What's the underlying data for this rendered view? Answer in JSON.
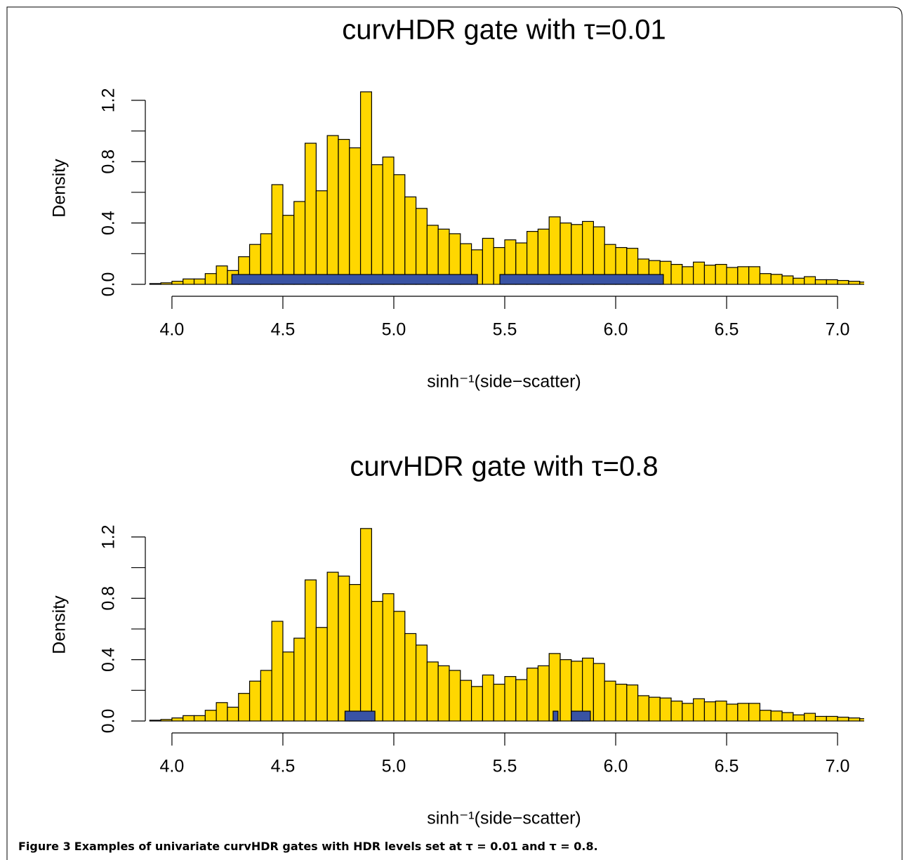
{
  "chart_data": [
    {
      "type": "histogram",
      "title": "curvHDR gate with τ=0.01",
      "x_label": "sinh⁻¹(side−scatter)",
      "y_label": "Density",
      "bins": [
        3.9,
        3.95,
        4.0,
        4.05,
        4.1,
        4.15,
        4.2,
        4.25,
        4.3,
        4.35,
        4.4,
        4.45,
        4.5,
        4.55,
        4.6,
        4.65,
        4.7,
        4.75,
        4.8,
        4.85,
        4.9,
        4.95,
        5.0,
        5.05,
        5.1,
        5.15,
        5.2,
        5.25,
        5.3,
        5.35,
        5.4,
        5.45,
        5.5,
        5.55,
        5.6,
        5.65,
        5.7,
        5.75,
        5.8,
        5.85,
        5.9,
        5.95,
        6.0,
        6.05,
        6.1,
        6.15,
        6.2,
        6.25,
        6.3,
        6.35,
        6.4,
        6.45,
        6.5,
        6.55,
        6.6,
        6.65,
        6.7,
        6.75,
        6.8,
        6.85,
        6.9,
        6.95,
        7.0,
        7.05,
        7.1,
        7.15
      ],
      "values": [
        0.005,
        0.01,
        0.02,
        0.035,
        0.035,
        0.07,
        0.12,
        0.09,
        0.18,
        0.26,
        0.33,
        0.65,
        0.45,
        0.54,
        0.92,
        0.61,
        0.97,
        0.945,
        0.89,
        1.255,
        0.78,
        0.83,
        0.715,
        0.57,
        0.495,
        0.385,
        0.36,
        0.33,
        0.265,
        0.225,
        0.3,
        0.24,
        0.29,
        0.27,
        0.345,
        0.36,
        0.44,
        0.4,
        0.39,
        0.41,
        0.375,
        0.26,
        0.24,
        0.235,
        0.165,
        0.155,
        0.15,
        0.13,
        0.115,
        0.145,
        0.125,
        0.13,
        0.11,
        0.115,
        0.115,
        0.07,
        0.065,
        0.055,
        0.04,
        0.05,
        0.03,
        0.03,
        0.025,
        0.02,
        0.015
      ],
      "color": "#ffd700",
      "gate_color": "#3953a4",
      "gates": [
        [
          4.27,
          5.377
        ],
        [
          5.478,
          6.215
        ]
      ],
      "xlim": [
        3.88,
        7.12
      ],
      "ylim": [
        0,
        1.3
      ],
      "xticks": [
        {
          "value": 4,
          "label": "4.0"
        },
        {
          "value": 4.5,
          "label": "4.5"
        },
        {
          "value": 5,
          "label": "5.0"
        },
        {
          "value": 5.5,
          "label": "5.5"
        },
        {
          "value": 6,
          "label": "6.0"
        },
        {
          "value": 6.5,
          "label": "6.5"
        },
        {
          "value": 7,
          "label": "7.0"
        }
      ],
      "yticks": [
        {
          "value": 0,
          "label": "0.0"
        },
        {
          "value": 0.2,
          "label": null
        },
        {
          "value": 0.4,
          "label": "0.4"
        },
        {
          "value": 0.6,
          "label": null
        },
        {
          "value": 0.8,
          "label": "0.8"
        },
        {
          "value": 1.0,
          "label": null
        },
        {
          "value": 1.2,
          "label": "1.2"
        }
      ]
    },
    {
      "type": "histogram",
      "title": "curvHDR gate with τ=0.8",
      "x_label": "sinh⁻¹(side−scatter)",
      "y_label": "Density",
      "bins": [
        3.9,
        3.95,
        4.0,
        4.05,
        4.1,
        4.15,
        4.2,
        4.25,
        4.3,
        4.35,
        4.4,
        4.45,
        4.5,
        4.55,
        4.6,
        4.65,
        4.7,
        4.75,
        4.8,
        4.85,
        4.9,
        4.95,
        5.0,
        5.05,
        5.1,
        5.15,
        5.2,
        5.25,
        5.3,
        5.35,
        5.4,
        5.45,
        5.5,
        5.55,
        5.6,
        5.65,
        5.7,
        5.75,
        5.8,
        5.85,
        5.9,
        5.95,
        6.0,
        6.05,
        6.1,
        6.15,
        6.2,
        6.25,
        6.3,
        6.35,
        6.4,
        6.45,
        6.5,
        6.55,
        6.6,
        6.65,
        6.7,
        6.75,
        6.8,
        6.85,
        6.9,
        6.95,
        7.0,
        7.05,
        7.1,
        7.15
      ],
      "values": [
        0.005,
        0.01,
        0.02,
        0.035,
        0.035,
        0.07,
        0.12,
        0.09,
        0.18,
        0.26,
        0.33,
        0.65,
        0.45,
        0.54,
        0.92,
        0.61,
        0.97,
        0.945,
        0.89,
        1.255,
        0.78,
        0.83,
        0.715,
        0.57,
        0.495,
        0.385,
        0.36,
        0.33,
        0.265,
        0.225,
        0.3,
        0.24,
        0.29,
        0.27,
        0.345,
        0.36,
        0.44,
        0.4,
        0.39,
        0.41,
        0.375,
        0.26,
        0.24,
        0.235,
        0.165,
        0.155,
        0.15,
        0.13,
        0.115,
        0.145,
        0.125,
        0.13,
        0.11,
        0.115,
        0.115,
        0.07,
        0.065,
        0.055,
        0.04,
        0.05,
        0.03,
        0.03,
        0.025,
        0.02,
        0.015
      ],
      "color": "#ffd700",
      "gate_color": "#3953a4",
      "gates": [
        [
          4.78,
          4.915
        ],
        [
          5.718,
          5.74
        ],
        [
          5.8,
          5.886
        ]
      ],
      "xlim": [
        3.88,
        7.12
      ],
      "ylim": [
        0,
        1.3
      ],
      "xticks": [
        {
          "value": 4,
          "label": "4.0"
        },
        {
          "value": 4.5,
          "label": "4.5"
        },
        {
          "value": 5,
          "label": "5.0"
        },
        {
          "value": 5.5,
          "label": "5.5"
        },
        {
          "value": 6,
          "label": "6.0"
        },
        {
          "value": 6.5,
          "label": "6.5"
        },
        {
          "value": 7,
          "label": "7.0"
        }
      ],
      "yticks": [
        {
          "value": 0,
          "label": "0.0"
        },
        {
          "value": 0.2,
          "label": null
        },
        {
          "value": 0.4,
          "label": "0.4"
        },
        {
          "value": 0.6,
          "label": null
        },
        {
          "value": 0.8,
          "label": "0.8"
        },
        {
          "value": 1.0,
          "label": null
        },
        {
          "value": 1.2,
          "label": "1.2"
        }
      ]
    }
  ],
  "caption": {
    "label": "Figure 3",
    "text": "Examples of univariate curvHDR gates with HDR levels set at τ = 0.01 and τ = 0.8."
  }
}
